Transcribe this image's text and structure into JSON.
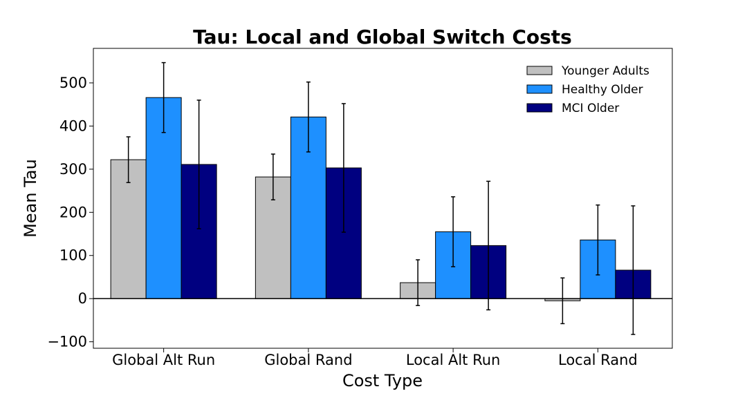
{
  "chart_data": {
    "type": "bar",
    "title": "Tau: Local and Global Switch Costs",
    "xlabel": "Cost Type",
    "ylabel": "Mean Tau",
    "categories": [
      "Global Alt Run",
      "Global Rand",
      "Local Alt Run",
      "Local Rand"
    ],
    "ylim": [
      -115,
      580
    ],
    "yticks": [
      -100,
      0,
      100,
      200,
      300,
      400,
      500
    ],
    "ytick_labels": [
      "−100",
      "0",
      "100",
      "200",
      "300",
      "400",
      "500"
    ],
    "grid": false,
    "zero_line": true,
    "legend_position": "top-right",
    "series": [
      {
        "name": "Younger Adults",
        "color": "#c0c0c0",
        "values": [
          322,
          282,
          37,
          -5
        ],
        "errors": [
          53,
          53,
          53,
          53
        ]
      },
      {
        "name": "Healthy Older",
        "color": "#1e90ff",
        "values": [
          466,
          421,
          155,
          136
        ],
        "errors": [
          81,
          81,
          81,
          81
        ]
      },
      {
        "name": "MCI Older",
        "color": "#000080",
        "values": [
          311,
          303,
          123,
          66
        ],
        "errors": [
          149,
          149,
          149,
          149
        ]
      }
    ]
  }
}
